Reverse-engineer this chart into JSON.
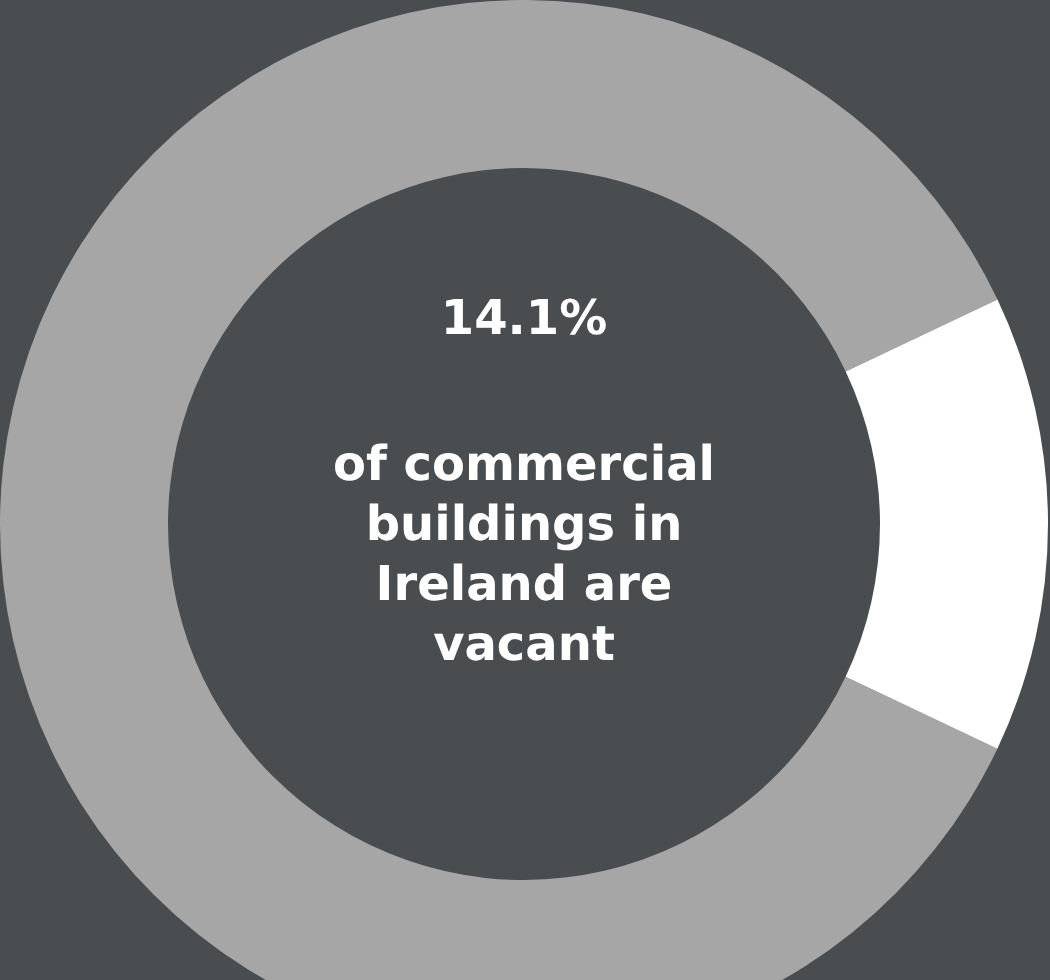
{
  "chart_data": {
    "type": "donut",
    "categories": [
      null,
      null
    ],
    "values": [
      85.9,
      14.1
    ],
    "colors": [
      "#a6a6a6",
      "#ffffff"
    ],
    "annotations": [
      "14.1%",
      "of commercial buildings in Ireland are vacant"
    ]
  }
}
